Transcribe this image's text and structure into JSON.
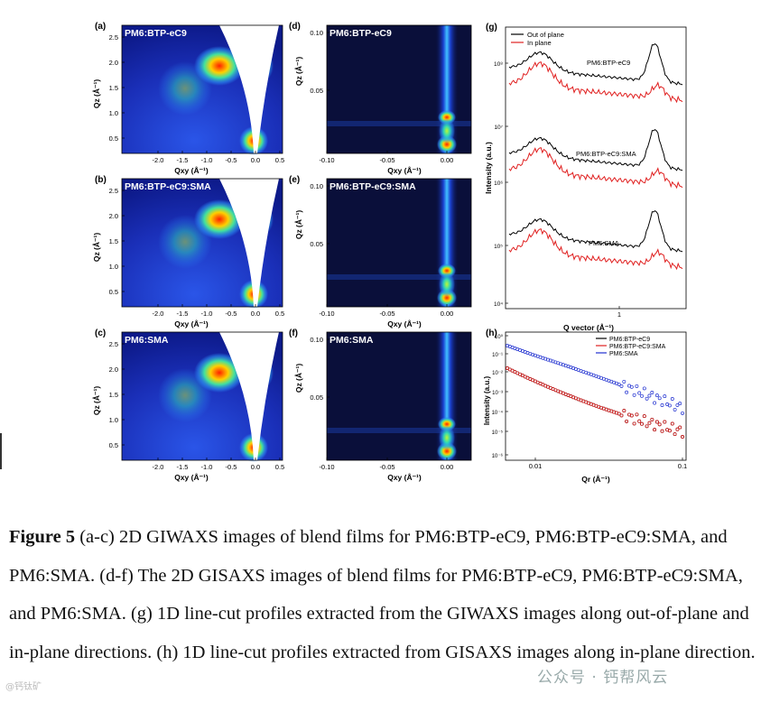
{
  "figure": {
    "panels_2d": [
      {
        "letter": "(a)",
        "title": "PM6:BTP-eC9",
        "xlabel": "Qxy (Å⁻¹)",
        "ylabel": "Qz (Å⁻¹)",
        "xticks": [
          "-2.0",
          "-1.5",
          "-1.0",
          "-0.5",
          "0.0",
          "0.5"
        ],
        "yticks": [
          "0.5",
          "1.0",
          "1.5",
          "2.0",
          "2.5"
        ]
      },
      {
        "letter": "(b)",
        "title": "PM6:BTP-eC9:SMA",
        "xlabel": "Qxy (Å⁻¹)",
        "ylabel": "Qz (Å⁻¹)",
        "xticks": [
          "-2.0",
          "-1.5",
          "-1.0",
          "-0.5",
          "0.0",
          "0.5"
        ],
        "yticks": [
          "0.5",
          "1.0",
          "1.5",
          "2.0",
          "2.5"
        ]
      },
      {
        "letter": "(c)",
        "title": "PM6:SMA",
        "xlabel": "Qxy (Å⁻¹)",
        "ylabel": "Qz (Å⁻¹)",
        "xticks": [
          "-2.0",
          "-1.5",
          "-1.0",
          "-0.5",
          "0.0",
          "0.5"
        ],
        "yticks": [
          "0.5",
          "1.0",
          "1.5",
          "2.0",
          "2.5"
        ]
      },
      {
        "letter": "(d)",
        "title": "PM6:BTP-eC9",
        "xlabel": "Qxy (Å⁻¹)",
        "ylabel": "Qz (Å⁻¹)",
        "xticks": [
          "-0.10",
          "-0.05",
          "0.00"
        ],
        "yticks": [
          "0.05",
          "0.10"
        ]
      },
      {
        "letter": "(e)",
        "title": "PM6:BTP-eC9:SMA",
        "xlabel": "Qxy (Å⁻¹)",
        "ylabel": "Qz (Å⁻¹)",
        "xticks": [
          "-0.10",
          "-0.05",
          "0.00"
        ],
        "yticks": [
          "0.05",
          "0.10"
        ]
      },
      {
        "letter": "(f)",
        "title": "PM6:SMA",
        "xlabel": "Qxy (Å⁻¹)",
        "ylabel": "Qz (Å⁻¹)",
        "xticks": [
          "-0.10",
          "-0.05",
          "0.00"
        ],
        "yticks": [
          "0.05",
          "0.10"
        ]
      }
    ],
    "panel_g": {
      "letter": "(g)",
      "legend": [
        "Out of plane",
        "In plane"
      ],
      "sample_labels": [
        "PM6:BTP-eC9",
        "PM6:BTP-eC9:SMA",
        "PM6:SMA"
      ],
      "ylabel": "Intensity (a.u.)",
      "xlabel": "Q vector (Å⁻¹)",
      "xtick": "1",
      "yticks": [
        "10⁸",
        "10⁷",
        "10⁶",
        "10⁵",
        "10⁴"
      ],
      "colors": {
        "out": "#000000",
        "in": "#e02020"
      }
    },
    "panel_h": {
      "letter": "(h)",
      "legend": [
        "PM6:BTP-eC9",
        "PM6:BTP-eC9:SMA",
        "PM6:SMA"
      ],
      "ylabel": "Intensity (a.u.)",
      "xlabel": "Qr (Å⁻¹)",
      "xticks": [
        "0.01",
        "0.1"
      ],
      "yticks": [
        "10⁰",
        "10⁻¹",
        "10⁻²",
        "10⁻³",
        "10⁻⁴",
        "10⁻⁵",
        "10⁻⁶"
      ],
      "colors": [
        "#000000",
        "#e02020",
        "#2030d0"
      ]
    }
  },
  "caption": {
    "bold": "Figure 5",
    "text": " (a-c) 2D GIWAXS images of blend films for PM6:BTP-eC9, PM6:BTP-eC9:SMA, and PM6:SMA. (d-f) The 2D GISAXS images of blend films for PM6:BTP-eC9, PM6:BTP-eC9:SMA, and PM6:SMA. (g) 1D line-cut profiles extracted from the GIWAXS images along out-of-plane and in-plane directions. (h) 1D line-cut profiles extracted from GISAXS images along in-plane direction."
  },
  "watermark": "公众号 · 钙帮风云",
  "watermark_left": "@钙钛矿"
}
